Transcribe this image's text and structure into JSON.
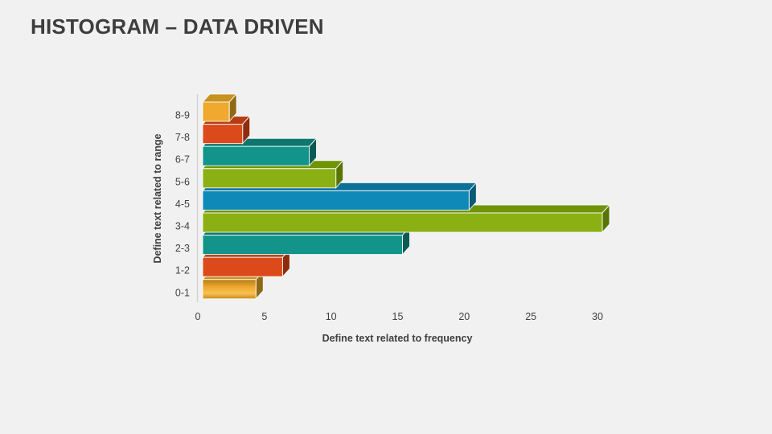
{
  "slide": {
    "title": "HISTOGRAM – DATA DRIVEN"
  },
  "chart_data": {
    "type": "bar",
    "orientation": "horizontal",
    "style": "3d",
    "title": "",
    "xlabel": "Define text related to frequency",
    "ylabel": "Define text related to range",
    "categories": [
      "0-1",
      "1-2",
      "2-3",
      "3-4",
      "4-5",
      "5-6",
      "6-7",
      "7-8",
      "8-9"
    ],
    "values": [
      4,
      6,
      15,
      30,
      20,
      10,
      8,
      3,
      2
    ],
    "xlim": [
      0,
      30
    ],
    "xticks": [
      0,
      5,
      10,
      15,
      20,
      25,
      30
    ],
    "grid": "off",
    "legend": "none",
    "category_colors": [
      "gold_gradient",
      "red",
      "teal",
      "green",
      "blue",
      "green",
      "teal",
      "red",
      "gold"
    ],
    "palette": {
      "gold": {
        "front": "#EFA92E",
        "top": "#C8921E",
        "side": "#8F6A15"
      },
      "gold_gradient": {
        "front": "url(#goldGrad)",
        "top": "#C8921E",
        "side": "#8F6A15"
      },
      "red": {
        "front": "#DC4A1C",
        "top": "#B63C12",
        "side": "#8E2C0E"
      },
      "teal": {
        "front": "#12948A",
        "top": "#0E766E",
        "side": "#0A5B55"
      },
      "green": {
        "front": "#8AB014",
        "top": "#6F9406",
        "side": "#587506"
      },
      "blue": {
        "front": "#0F89B7",
        "top": "#0D7096",
        "side": "#0A5878"
      }
    },
    "axis_color": "#d2d2d2",
    "text_color": "#3f3f3f"
  }
}
